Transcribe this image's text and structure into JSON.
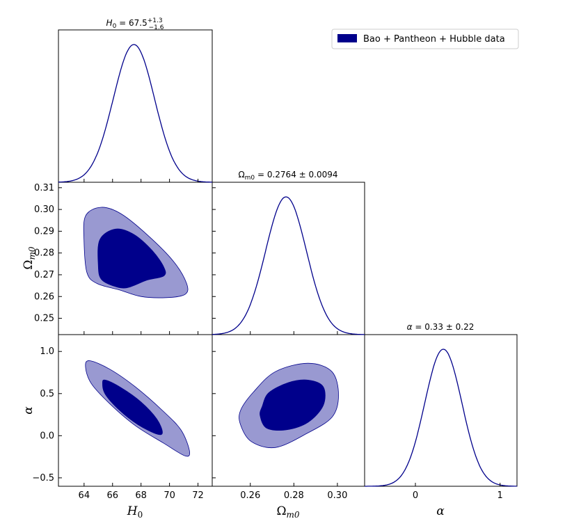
{
  "chart_data": {
    "type": "corner",
    "colors": {
      "inner": "#00008B",
      "outer": "#9999D1",
      "line": "#00008B"
    },
    "legend": {
      "label": "Bao + Pantheon + Hubble data",
      "placement": "top-right"
    },
    "params": [
      {
        "id": "H0",
        "label": "H₀",
        "sub_title": "H",
        "sub_idx": "0",
        "title_prefix": "H",
        "title_idx": "0",
        "title_value": " = 67.5",
        "title_up": "+1.3",
        "title_down": "−1.6",
        "mean": 67.5,
        "range": [
          62.2,
          73.0
        ],
        "ticks": [
          64,
          66,
          68,
          70,
          72
        ],
        "tick_labels": [
          "64",
          "66",
          "68",
          "70",
          "72"
        ]
      },
      {
        "id": "Om",
        "label": "Ωm0",
        "title_prefix": "Ω",
        "title_idx": "m0",
        "title_value": " = 0.2764 ± 0.0094",
        "mean": 0.2764,
        "range": [
          0.2425,
          0.3125
        ],
        "ticks": [
          0.25,
          0.26,
          0.27,
          0.28,
          0.29,
          0.3,
          0.31
        ],
        "tick_labels": [
          "0.25",
          "0.26",
          "0.27",
          "0.28",
          "0.29",
          "0.30",
          "0.31"
        ],
        "x_ticks": [
          0.26,
          0.28,
          0.3
        ],
        "x_tick_labels": [
          "0.26",
          "0.28",
          "0.30"
        ]
      },
      {
        "id": "alpha",
        "label": "α",
        "title_prefix": "α",
        "title_idx": "",
        "title_value": " = 0.33 ± 0.22",
        "mean": 0.33,
        "range": [
          -0.6,
          1.2
        ],
        "ticks": [
          -0.5,
          0.0,
          0.5,
          1.0
        ],
        "tick_labels": [
          "−0.5",
          "0.0",
          "0.5",
          "1.0"
        ],
        "x_ticks": [
          0,
          1
        ],
        "x_tick_labels": [
          "0",
          "1"
        ]
      }
    ],
    "contours": {
      "H0_Om": {
        "outer": [
          [
            64.1,
            0.297
          ],
          [
            65.2,
            0.301
          ],
          [
            66.6,
            0.298
          ],
          [
            68.5,
            0.288
          ],
          [
            70.3,
            0.276
          ],
          [
            71.2,
            0.266
          ],
          [
            71.1,
            0.261
          ],
          [
            69.8,
            0.2595
          ],
          [
            68.0,
            0.26
          ],
          [
            66.5,
            0.263
          ],
          [
            64.9,
            0.266
          ],
          [
            64.2,
            0.271
          ],
          [
            64.0,
            0.285
          ]
        ],
        "inner": [
          [
            65.1,
            0.286
          ],
          [
            66.2,
            0.291
          ],
          [
            67.5,
            0.2885
          ],
          [
            68.8,
            0.281
          ],
          [
            69.6,
            0.2735
          ],
          [
            69.6,
            0.2695
          ],
          [
            68.4,
            0.2675
          ],
          [
            67.0,
            0.264
          ],
          [
            66.0,
            0.265
          ],
          [
            65.2,
            0.268
          ],
          [
            65.0,
            0.274
          ]
        ]
      },
      "H0_alpha": {
        "outer": [
          [
            64.1,
            0.82
          ],
          [
            64.4,
            0.89
          ],
          [
            65.8,
            0.79
          ],
          [
            67.6,
            0.58
          ],
          [
            69.5,
            0.3
          ],
          [
            70.8,
            0.07
          ],
          [
            71.4,
            -0.18
          ],
          [
            71.1,
            -0.24
          ],
          [
            69.6,
            -0.09
          ],
          [
            67.6,
            0.12
          ],
          [
            65.8,
            0.38
          ],
          [
            64.5,
            0.62
          ]
        ],
        "inner": [
          [
            65.3,
            0.62
          ],
          [
            65.5,
            0.66
          ],
          [
            66.6,
            0.57
          ],
          [
            68.0,
            0.4
          ],
          [
            69.1,
            0.2
          ],
          [
            69.5,
            0.04
          ],
          [
            69.1,
            0.02
          ],
          [
            67.8,
            0.13
          ],
          [
            66.5,
            0.3
          ],
          [
            65.5,
            0.49
          ]
        ]
      },
      "Om_alpha": {
        "outer": [
          [
            0.2555,
            0.3
          ],
          [
            0.2615,
            0.52
          ],
          [
            0.2715,
            0.76
          ],
          [
            0.2865,
            0.86
          ],
          [
            0.2975,
            0.76
          ],
          [
            0.3005,
            0.48
          ],
          [
            0.2975,
            0.22
          ],
          [
            0.2855,
            0.02
          ],
          [
            0.2715,
            -0.14
          ],
          [
            0.2605,
            -0.07
          ],
          [
            0.2555,
            0.13
          ]
        ],
        "inner": [
          [
            0.2655,
            0.35
          ],
          [
            0.2685,
            0.51
          ],
          [
            0.2775,
            0.63
          ],
          [
            0.2865,
            0.66
          ],
          [
            0.2935,
            0.58
          ],
          [
            0.2935,
            0.36
          ],
          [
            0.2865,
            0.16
          ],
          [
            0.2765,
            0.07
          ],
          [
            0.2675,
            0.09
          ],
          [
            0.2645,
            0.24
          ]
        ]
      }
    },
    "marginals": {
      "H0": {
        "mean": 67.5,
        "sd": 1.45
      },
      "Om": {
        "mean": 0.2764,
        "sd": 0.0094
      },
      "alpha": {
        "mean": 0.33,
        "sd": 0.22
      }
    }
  }
}
